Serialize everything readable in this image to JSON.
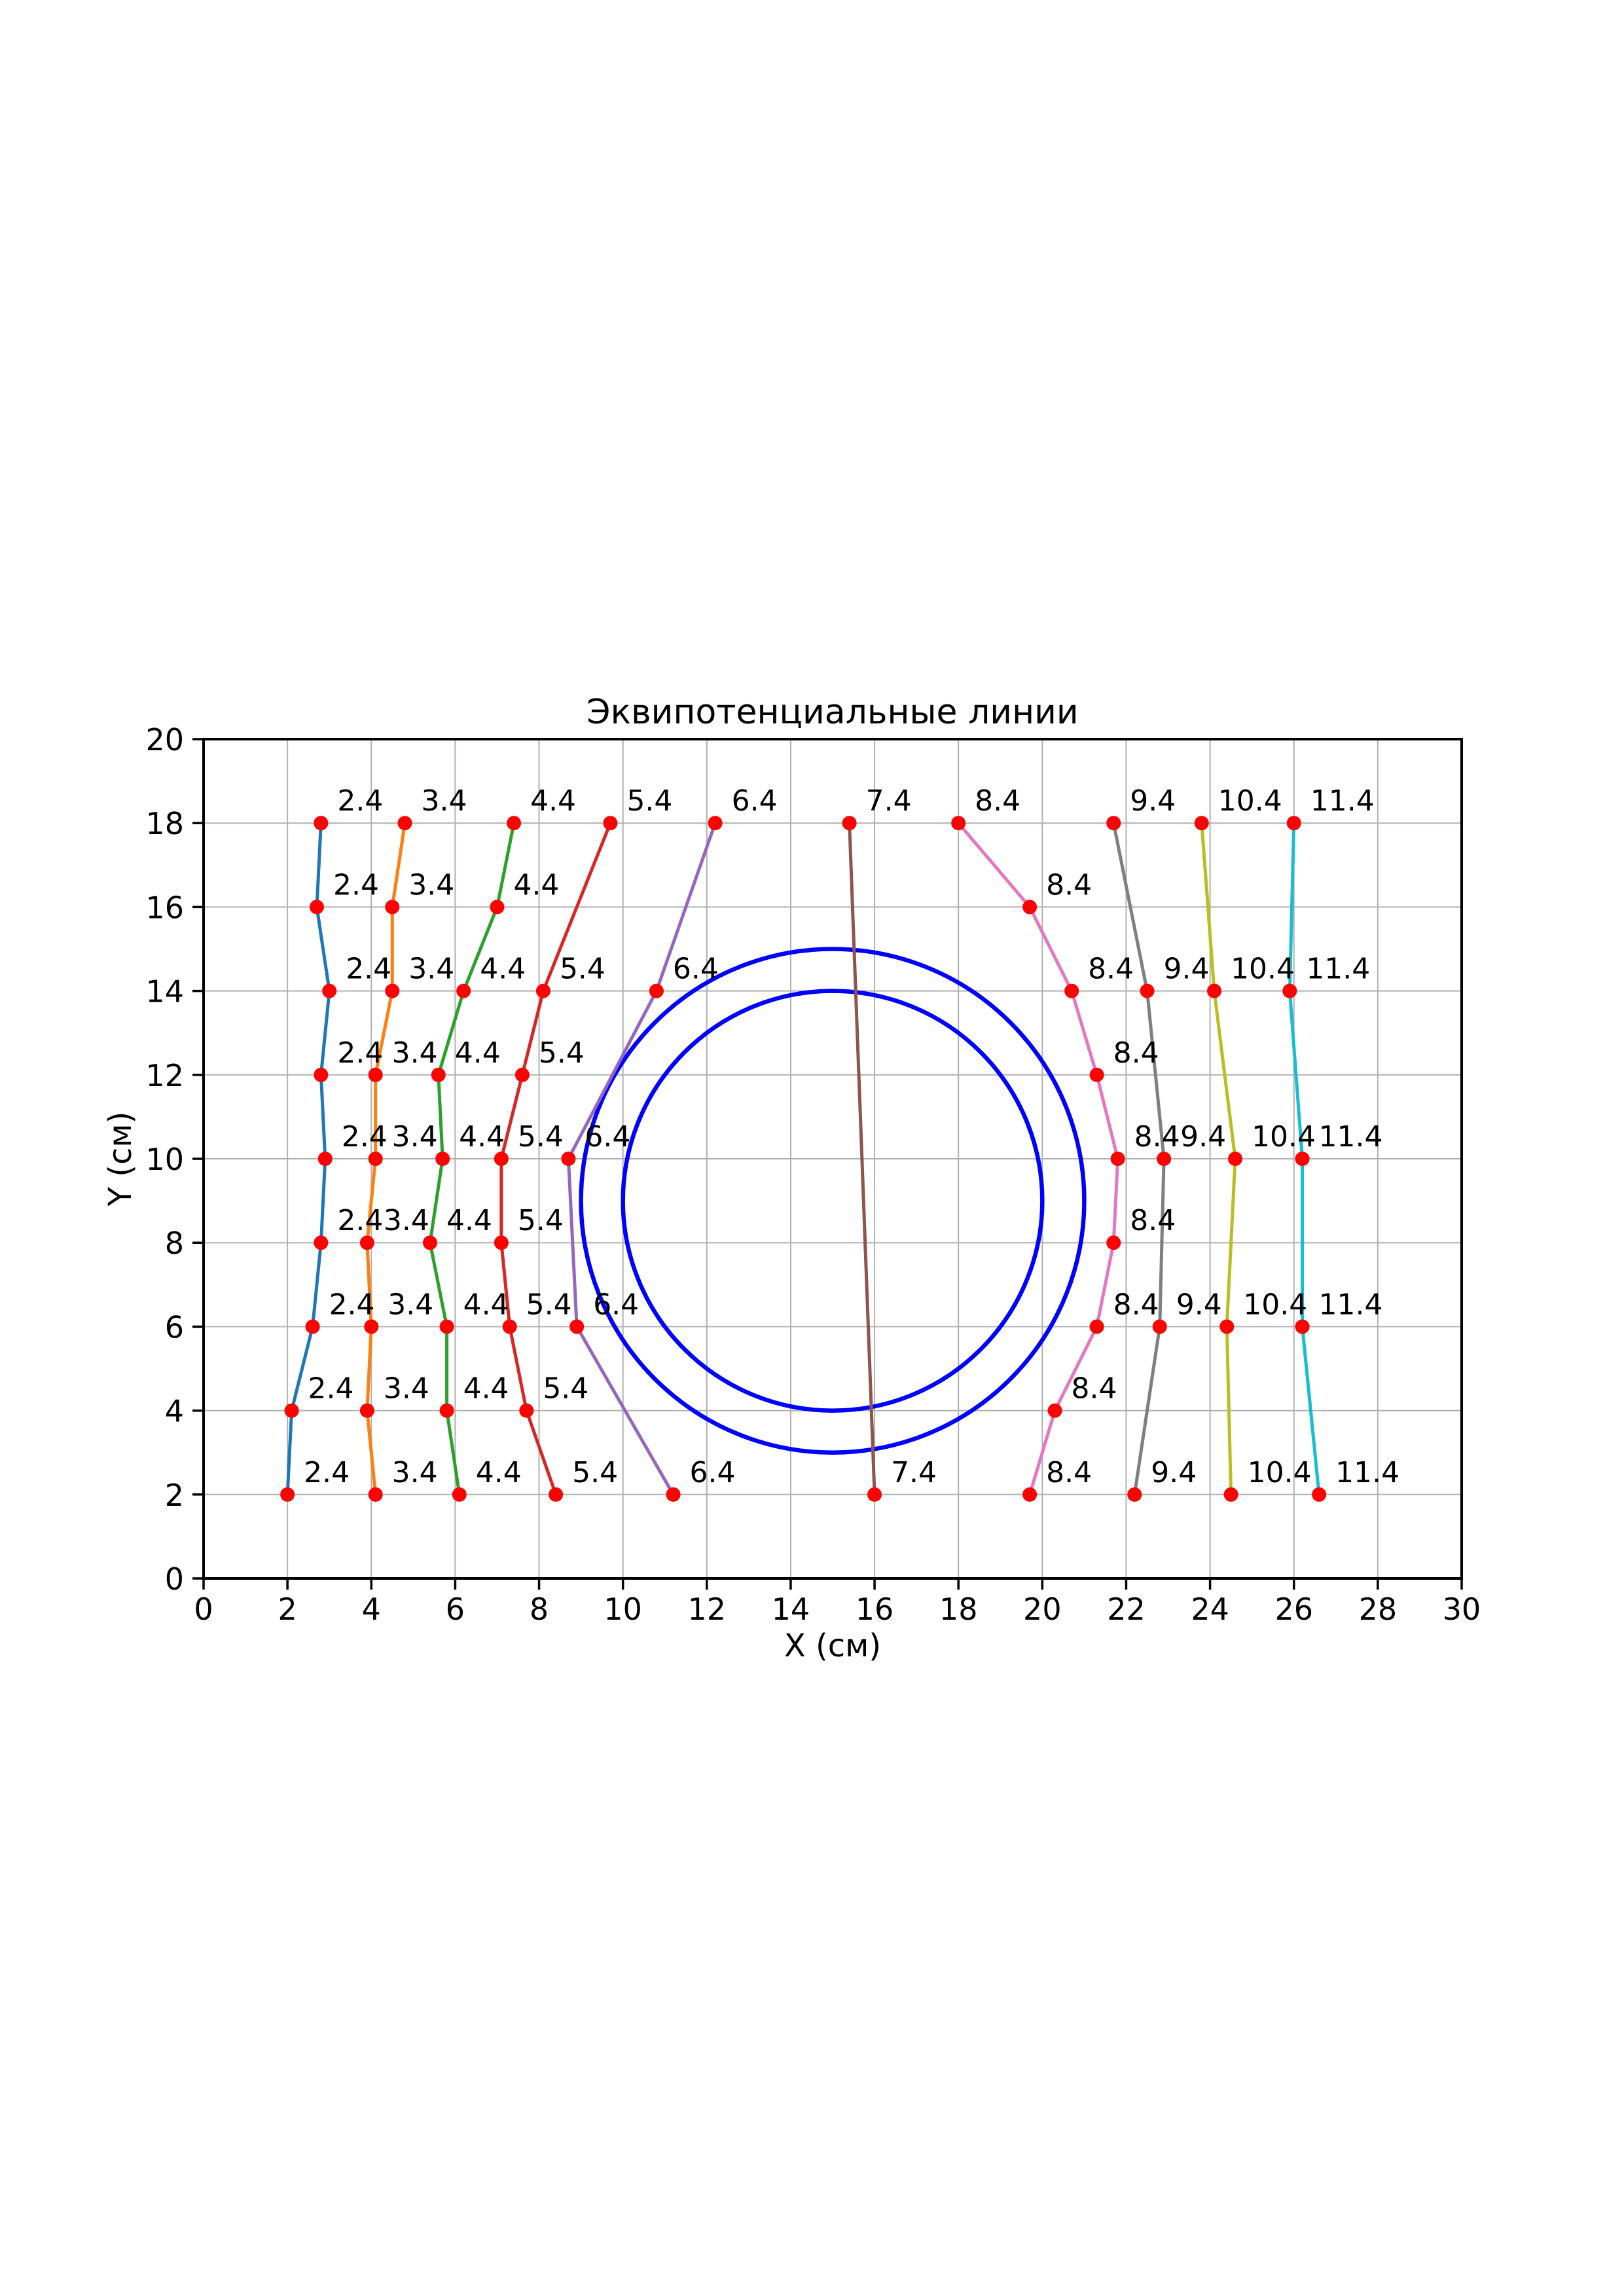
{
  "chart_data": {
    "type": "line",
    "title": "Эквипотенциальные линии",
    "xlabel": "X (см)",
    "ylabel": "Y (см)",
    "xlim": [
      0,
      30
    ],
    "ylim": [
      0,
      20
    ],
    "xticks": [
      0,
      2,
      4,
      6,
      8,
      10,
      12,
      14,
      16,
      18,
      20,
      22,
      24,
      26,
      28,
      30
    ],
    "yticks": [
      0,
      2,
      4,
      6,
      8,
      10,
      12,
      14,
      16,
      18,
      20
    ],
    "grid": true,
    "grid_color": "#b0b0b0",
    "axis_color": "#000000",
    "annotation_color": "#000000",
    "marker_color": "#ff0000",
    "legend": "none",
    "electrodes": {
      "shape": "concentric-circles",
      "color": "#0000ff",
      "center": [
        15,
        9
      ],
      "outer_radius": 6,
      "inner_radius": 5
    },
    "series": [
      {
        "label": "2.4",
        "color": "#1f77b4",
        "points": [
          [
            2.8,
            18
          ],
          [
            2.7,
            16
          ],
          [
            3.0,
            14
          ],
          [
            2.8,
            12
          ],
          [
            2.9,
            10
          ],
          [
            2.8,
            8
          ],
          [
            2.6,
            6
          ],
          [
            2.1,
            4
          ],
          [
            2.0,
            2
          ]
        ]
      },
      {
        "label": "3.4",
        "color": "#ff7f0e",
        "points": [
          [
            4.8,
            18
          ],
          [
            4.5,
            16
          ],
          [
            4.5,
            14
          ],
          [
            4.1,
            12
          ],
          [
            4.1,
            10
          ],
          [
            3.9,
            8
          ],
          [
            4.0,
            6
          ],
          [
            3.9,
            4
          ],
          [
            4.1,
            2
          ]
        ]
      },
      {
        "label": "4.4",
        "color": "#2ca02c",
        "points": [
          [
            7.4,
            18
          ],
          [
            7.0,
            16
          ],
          [
            6.2,
            14
          ],
          [
            5.6,
            12
          ],
          [
            5.7,
            10
          ],
          [
            5.4,
            8
          ],
          [
            5.8,
            6
          ],
          [
            5.8,
            4
          ],
          [
            6.1,
            2
          ]
        ]
      },
      {
        "label": "5.4",
        "color": "#d62728",
        "points": [
          [
            9.7,
            18
          ],
          [
            8.1,
            14
          ],
          [
            7.6,
            12
          ],
          [
            7.1,
            10
          ],
          [
            7.1,
            8
          ],
          [
            7.3,
            6
          ],
          [
            7.7,
            4
          ],
          [
            8.4,
            2
          ]
        ]
      },
      {
        "label": "6.4",
        "color": "#9467bd",
        "points": [
          [
            12.2,
            18
          ],
          [
            10.8,
            14
          ],
          [
            8.7,
            10
          ],
          [
            8.9,
            6
          ],
          [
            11.2,
            2
          ]
        ]
      },
      {
        "label": "7.4",
        "color": "#8c564b",
        "points": [
          [
            15.4,
            18
          ],
          [
            16.0,
            2
          ]
        ]
      },
      {
        "label": "8.4",
        "color": "#e377c2",
        "points": [
          [
            18.0,
            18
          ],
          [
            19.7,
            16
          ],
          [
            20.7,
            14
          ],
          [
            21.3,
            12
          ],
          [
            21.8,
            10
          ],
          [
            21.7,
            8
          ],
          [
            21.3,
            6
          ],
          [
            20.3,
            4
          ],
          [
            19.7,
            2
          ]
        ]
      },
      {
        "label": "9.4",
        "color": "#7f7f7f",
        "points": [
          [
            21.7,
            18
          ],
          [
            22.5,
            14
          ],
          [
            22.9,
            10
          ],
          [
            22.8,
            6
          ],
          [
            22.2,
            2
          ]
        ]
      },
      {
        "label": "10.4",
        "color": "#bcbd22",
        "points": [
          [
            23.8,
            18
          ],
          [
            24.1,
            14
          ],
          [
            24.6,
            10
          ],
          [
            24.4,
            6
          ],
          [
            24.5,
            2
          ]
        ]
      },
      {
        "label": "11.4",
        "color": "#17becf",
        "points": [
          [
            26.0,
            18
          ],
          [
            25.9,
            14
          ],
          [
            26.2,
            10
          ],
          [
            26.2,
            6
          ],
          [
            26.6,
            2
          ]
        ]
      }
    ]
  }
}
